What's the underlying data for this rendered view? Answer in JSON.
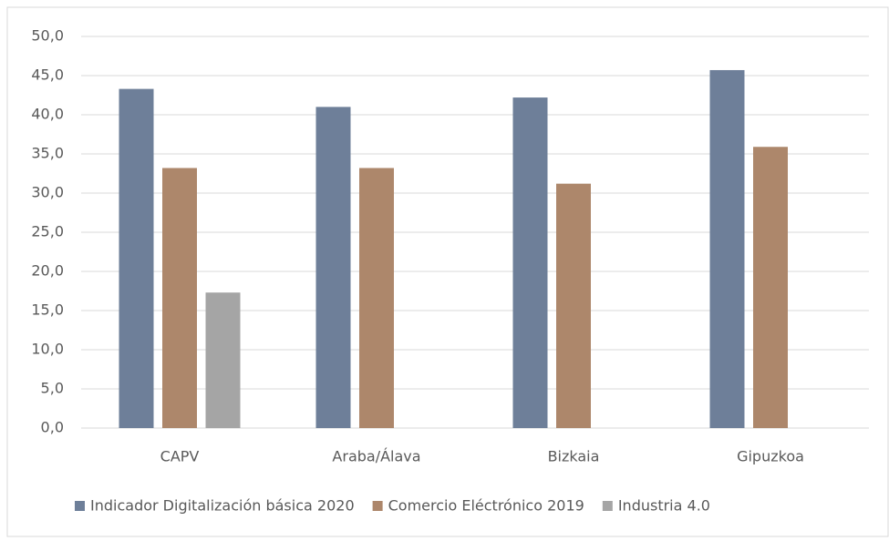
{
  "chart_data": {
    "type": "bar",
    "categories": [
      "CAPV",
      "Araba/Álava",
      "Bizkaia",
      "Gipuzkoa"
    ],
    "series": [
      {
        "name": "Indicador Digitalización básica 2020",
        "color": "#6e7f99",
        "values": [
          43.3,
          41.0,
          42.2,
          45.7
        ]
      },
      {
        "name": "Comercio Eléctrónico 2019",
        "color": "#ad876b",
        "values": [
          33.2,
          33.2,
          31.2,
          35.9
        ]
      },
      {
        "name": "Industria 4.0",
        "color": "#a5a5a5",
        "values": [
          17.3,
          null,
          null,
          null
        ]
      }
    ],
    "ylim": [
      0,
      50
    ],
    "yticks": [
      {
        "value": 0,
        "label": "0,0"
      },
      {
        "value": 5,
        "label": "5,0"
      },
      {
        "value": 10,
        "label": "10,0"
      },
      {
        "value": 15,
        "label": "15,0"
      },
      {
        "value": 20,
        "label": "20,0"
      },
      {
        "value": 25,
        "label": "25,0"
      },
      {
        "value": 30,
        "label": "30,0"
      },
      {
        "value": 35,
        "label": "35,0"
      },
      {
        "value": 40,
        "label": "40,0"
      },
      {
        "value": 45,
        "label": "45,0"
      },
      {
        "value": 50,
        "label": "50,0"
      }
    ],
    "grid": true,
    "legend": "bottom"
  }
}
